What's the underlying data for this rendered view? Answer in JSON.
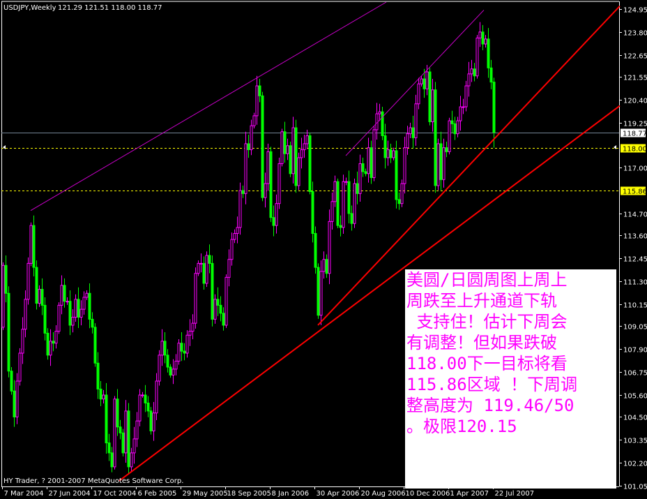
{
  "header": {
    "symbol_timeframe": "USDJPY,Weekly",
    "ohlc": "121.29 121.51 118.00 118.77"
  },
  "copyright": "HY Trader, ? 2001-2007 MetaQuotes Software Corp.",
  "colors": {
    "background": "#000000",
    "bull": "#ff00ff",
    "bear": "#00ff00",
    "trendline": "#ff0000",
    "channel": "#cc00cc",
    "level": "#ffff00",
    "bid_line": "#778899"
  },
  "note": {
    "lines": [
      "美圆/日圆周图上周上",
      "周跌至上升通道下轨",
      " 支持住！估计下周会",
      "有调整！但如果跌破",
      "118.00下一目标将看",
      "115.86区域 ！下周调",
      "整高度为 119.46/50",
      "。极限120.15"
    ]
  },
  "chart_data": {
    "type": "candlestick",
    "symbol": "USDJPY",
    "timeframe": "Weekly",
    "first_open": 109.0,
    "closes": [
      112.1,
      110.7,
      106.8,
      105.8,
      104.5,
      106.3,
      107.7,
      108.9,
      110.4,
      112.2,
      114.1,
      112.0,
      110.2,
      110.9,
      110.1,
      108.7,
      107.6,
      108.3,
      108.2,
      108.8,
      110.1,
      111.1,
      110.3,
      110.3,
      109.1,
      109.5,
      110.4,
      109.5,
      109.9,
      110.5,
      110.7,
      109.4,
      109.0,
      107.2,
      105.9,
      105.4,
      105.6,
      103.2,
      102.7,
      102.0,
      105.4,
      104.0,
      103.7,
      102.7,
      104.8,
      102.0,
      102.7,
      103.4,
      104.3,
      105.6,
      105.6,
      105.2,
      104.8,
      103.8,
      104.7,
      106.3,
      107.6,
      108.3,
      107.6,
      107.0,
      106.6,
      106.9,
      107.3,
      108.2,
      107.8,
      107.7,
      108.6,
      108.8,
      109.2,
      111.7,
      112.2,
      112.2,
      111.2,
      112.6,
      112.2,
      109.4,
      110.4,
      110.1,
      109.7,
      109.1,
      111.5,
      112.4,
      113.4,
      113.7,
      114.0,
      115.85,
      115.7,
      118.2,
      117.9,
      119.1,
      119.6,
      121.1,
      120.6,
      115.5,
      116.2,
      117.8,
      114.5,
      114.1,
      115.2,
      117.2,
      118.8,
      117.7,
      118.1,
      116.7,
      119.0,
      116.1,
      117.5,
      117.9,
      118.2,
      118.6,
      115.8,
      113.7,
      112.0,
      109.6,
      111.8,
      112.4,
      111.7,
      114.3,
      115.3,
      116.3,
      114.1,
      114.0,
      116.3,
      116.3,
      114.7,
      114.2,
      116.2,
      115.7,
      117.2,
      116.8,
      116.7,
      118.0,
      116.5,
      118.9,
      119.7,
      119.8,
      118.6,
      117.5,
      117.9,
      117.5,
      117.85,
      115.4,
      115.2,
      116.2,
      118.0,
      118.7,
      119.0,
      118.5,
      120.2,
      121.2,
      121.45,
      120.95,
      121.8,
      119.3,
      120.9,
      116.1,
      118.2,
      116.4,
      118.0,
      117.8,
      119.35,
      119.2,
      118.7,
      119.35,
      120.05,
      120.05,
      121.1,
      121.7,
      121.95,
      121.6,
      123.5,
      123.8,
      123.2,
      123.45,
      122.0,
      121.29,
      118.77
    ],
    "last_bar": {
      "open": 121.29,
      "high": 121.51,
      "low": 118.0,
      "close": 118.77
    },
    "x_ticks": [
      {
        "bar": 0,
        "label": "7 Mar 2004"
      },
      {
        "bar": 16,
        "label": "27 Jun 2004"
      },
      {
        "bar": 32,
        "label": "17 Oct 2004"
      },
      {
        "bar": 48,
        "label": "6 Feb 2005"
      },
      {
        "bar": 64,
        "label": "29 May 2005"
      },
      {
        "bar": 80,
        "label": "18 Sep 2005"
      },
      {
        "bar": 96,
        "label": "8 Jan 2006"
      },
      {
        "bar": 112,
        "label": "30 Apr 2006"
      },
      {
        "bar": 128,
        "label": "20 Aug 2006"
      },
      {
        "bar": 144,
        "label": "10 Dec 2006"
      },
      {
        "bar": 160,
        "label": "1 Apr 2007"
      },
      {
        "bar": 176,
        "label": "22 Jul 2007"
      }
    ],
    "y_ticks": [
      "124.95",
      "123.80",
      "122.65",
      "121.55",
      "120.40",
      "119.25",
      "117.00",
      "114.70",
      "113.60",
      "112.45",
      "111.30",
      "110.15",
      "109.05",
      "107.90",
      "106.75",
      "105.60",
      "104.50",
      "103.35",
      "102.20",
      "101.05"
    ],
    "y_range": [
      101.02,
      125.33
    ],
    "horizontal_lines": [
      {
        "price": "118.77",
        "style": "solid",
        "color": "#778899",
        "label_bg": "#ffffff"
      },
      {
        "price": "118.00",
        "style": "dashed",
        "color": "#ffff00",
        "label_bg": "#ffff00"
      },
      {
        "price": "115.86",
        "style": "dashed",
        "color": "#ffff00",
        "label_bg": "#ffff00"
      }
    ],
    "trendlines": [
      {
        "name": "support-lower",
        "color": "#ff0000",
        "from": [
          41.75,
          101.3
        ],
        "to": [
          221.25,
          120.1
        ]
      },
      {
        "name": "support-upper",
        "color": "#ff0000",
        "from": [
          113,
          109.1
        ],
        "to": [
          221.25,
          125.1
        ]
      },
      {
        "name": "channel-top-1",
        "color": "#cc00cc",
        "from": [
          10,
          114.85
        ],
        "to": [
          137.5,
          125.3
        ]
      },
      {
        "name": "channel-top-2",
        "color": "#cc00cc",
        "from": [
          123,
          117.6
        ],
        "to": [
          172.5,
          124.9
        ]
      }
    ]
  }
}
